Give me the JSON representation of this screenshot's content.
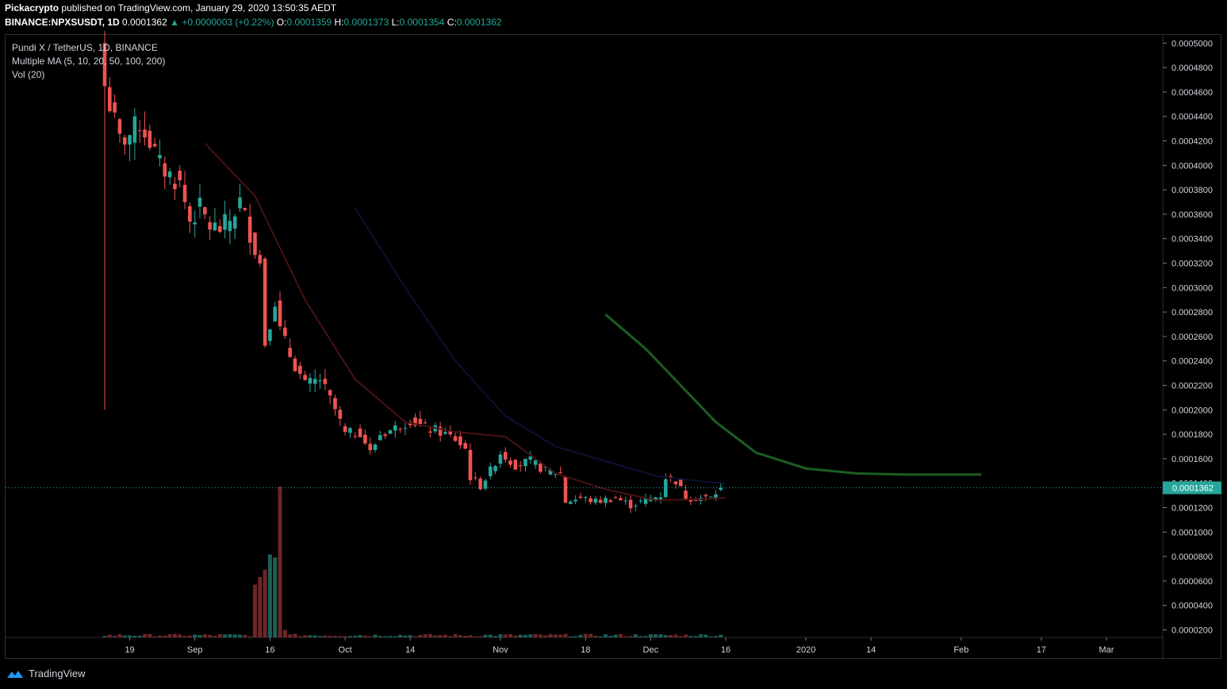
{
  "header": {
    "author": "Pickacrypto",
    "published": "published on TradingView.com, January 29, 2020 13:50:35 AEDT",
    "symbol_interval": "BINANCE:NPXSUSDT, 1D",
    "last": "0.0001362",
    "change": "+0.0000003 (+0.22%)",
    "o_label": "O:",
    "o_value": "0.0001359",
    "h_label": "H:",
    "h_value": "0.0001373",
    "l_label": "L:",
    "l_value": "0.0001354",
    "c_label": "C:",
    "c_value": "0.0001362"
  },
  "legend": {
    "title": "Pundi X / TetherUS, 1D, BINANCE",
    "ma": "Multiple MA (5, 10, 20, 50, 100, 200)",
    "vol": "Vol (20)"
  },
  "footer": {
    "brand": "TradingView"
  },
  "colors": {
    "up": "#26a69a",
    "down": "#ef5350",
    "ma20": "#4a1212",
    "ma50": "#0d1033",
    "ma200": "#1b5e20",
    "background": "#000000"
  },
  "chart_data": {
    "type": "candlestick",
    "symbol": "BINANCE:NPXSUSDT",
    "interval": "1D",
    "ylim": [
      2e-05,
      0.0005
    ],
    "y_ticks": [
      "0.0005000",
      "0.0004800",
      "0.0004600",
      "0.0004400",
      "0.0004200",
      "0.0004000",
      "0.0003800",
      "0.0003600",
      "0.0003400",
      "0.0003200",
      "0.0003000",
      "0.0002800",
      "0.0002600",
      "0.0002400",
      "0.0002200",
      "0.0002000",
      "0.0001800",
      "0.0001600",
      "0.0001400",
      "0.0001200",
      "0.0001000",
      "0.0000800",
      "0.0000600",
      "0.0000400",
      "0.0000200"
    ],
    "x_ticks": [
      {
        "label": "19",
        "day": 5
      },
      {
        "label": "Sep",
        "day": 18
      },
      {
        "label": "16",
        "day": 33
      },
      {
        "label": "Oct",
        "day": 48
      },
      {
        "label": "14",
        "day": 61
      },
      {
        "label": "Nov",
        "day": 79
      },
      {
        "label": "18",
        "day": 96
      },
      {
        "label": "Dec",
        "day": 109
      },
      {
        "label": "16",
        "day": 124
      },
      {
        "label": "2020",
        "day": 140
      },
      {
        "label": "14",
        "day": 153
      },
      {
        "label": "Feb",
        "day": 171
      },
      {
        "label": "17",
        "day": 187
      },
      {
        "label": "Mar",
        "day": 200
      }
    ],
    "last_price_label": "0.0001362",
    "last_price": 0.0001362,
    "anchors": [
      {
        "d": 0,
        "c": 0.000465
      },
      {
        "d": 3,
        "c": 0.00042
      },
      {
        "d": 5,
        "c": 0.000425
      },
      {
        "d": 7,
        "c": 0.000435
      },
      {
        "d": 9,
        "c": 0.00042
      },
      {
        "d": 11,
        "c": 0.0004
      },
      {
        "d": 13,
        "c": 0.000392
      },
      {
        "d": 15,
        "c": 0.000385
      },
      {
        "d": 17,
        "c": 0.000355
      },
      {
        "d": 19,
        "c": 0.000365
      },
      {
        "d": 21,
        "c": 0.00035
      },
      {
        "d": 23,
        "c": 0.000348
      },
      {
        "d": 25,
        "c": 0.000355
      },
      {
        "d": 27,
        "c": 0.00037
      },
      {
        "d": 29,
        "c": 0.000345
      },
      {
        "d": 31,
        "c": 0.00032
      },
      {
        "d": 32,
        "c": 0.000255
      },
      {
        "d": 34,
        "c": 0.00029
      },
      {
        "d": 35,
        "c": 0.000265
      },
      {
        "d": 37,
        "c": 0.000245
      },
      {
        "d": 40,
        "c": 0.00022
      },
      {
        "d": 43,
        "c": 0.000225
      },
      {
        "d": 46,
        "c": 0.0002
      },
      {
        "d": 48,
        "c": 0.00018
      },
      {
        "d": 51,
        "c": 0.000182
      },
      {
        "d": 53,
        "c": 0.000165
      },
      {
        "d": 55,
        "c": 0.00018
      },
      {
        "d": 58,
        "c": 0.000185
      },
      {
        "d": 61,
        "c": 0.000192
      },
      {
        "d": 64,
        "c": 0.000185
      },
      {
        "d": 67,
        "c": 0.000182
      },
      {
        "d": 70,
        "c": 0.000176
      },
      {
        "d": 72,
        "c": 0.000168
      },
      {
        "d": 73,
        "c": 0.000145
      },
      {
        "d": 75,
        "c": 0.000138
      },
      {
        "d": 77,
        "c": 0.00015
      },
      {
        "d": 79,
        "c": 0.000165
      },
      {
        "d": 82,
        "c": 0.000155
      },
      {
        "d": 85,
        "c": 0.000158
      },
      {
        "d": 88,
        "c": 0.00015
      },
      {
        "d": 91,
        "c": 0.000148
      },
      {
        "d": 92,
        "c": 0.000125
      },
      {
        "d": 95,
        "c": 0.000128
      },
      {
        "d": 98,
        "c": 0.000125
      },
      {
        "d": 102,
        "c": 0.000128
      },
      {
        "d": 105,
        "c": 0.000122
      },
      {
        "d": 108,
        "c": 0.000126
      },
      {
        "d": 111,
        "c": 0.00013
      },
      {
        "d": 112,
        "c": 0.000145
      },
      {
        "d": 114,
        "c": 0.000142
      },
      {
        "d": 116,
        "c": 0.000128
      },
      {
        "d": 119,
        "c": 0.000128
      },
      {
        "d": 121,
        "c": 0.000128
      },
      {
        "d": 123,
        "c": 0.000136
      }
    ],
    "moving_averages": [
      {
        "name": "MA 20",
        "color": "#4a1212",
        "points": [
          [
            20,
            0.000418
          ],
          [
            30,
            0.000375
          ],
          [
            40,
            0.00029
          ],
          [
            50,
            0.000225
          ],
          [
            60,
            0.00019
          ],
          [
            70,
            0.000182
          ],
          [
            80,
            0.000178
          ],
          [
            90,
            0.000148
          ],
          [
            100,
            0.000135
          ],
          [
            110,
            0.000126
          ],
          [
            120,
            0.000127
          ],
          [
            124,
            0.000128
          ]
        ]
      },
      {
        "name": "MA 50",
        "color": "#0d1033",
        "points": [
          [
            50,
            0.000365
          ],
          [
            60,
            0.0003
          ],
          [
            70,
            0.00024
          ],
          [
            80,
            0.000195
          ],
          [
            90,
            0.00017
          ],
          [
            100,
            0.000158
          ],
          [
            110,
            0.000146
          ],
          [
            120,
            0.000141
          ],
          [
            124,
            0.00014
          ]
        ]
      },
      {
        "name": "MA 200",
        "color": "#1b5e20",
        "points": [
          [
            100,
            0.000278
          ],
          [
            108,
            0.00025
          ],
          [
            115,
            0.00022
          ],
          [
            122,
            0.00019
          ],
          [
            130,
            0.000165
          ],
          [
            140,
            0.000152
          ],
          [
            150,
            0.000148
          ],
          [
            160,
            0.000147
          ],
          [
            170,
            0.000147
          ],
          [
            175,
            0.000147
          ]
        ]
      }
    ],
    "volume": {
      "spike_day": 35,
      "spike": [
        {
          "d": 30,
          "v": 0.35
        },
        {
          "d": 31,
          "v": 0.4
        },
        {
          "d": 32,
          "v": 0.45
        },
        {
          "d": 33,
          "v": 0.55
        },
        {
          "d": 34,
          "v": 0.53
        },
        {
          "d": 35,
          "v": 1.0
        },
        {
          "d": 36,
          "v": 0.05
        }
      ],
      "baseline": 0.015
    }
  }
}
